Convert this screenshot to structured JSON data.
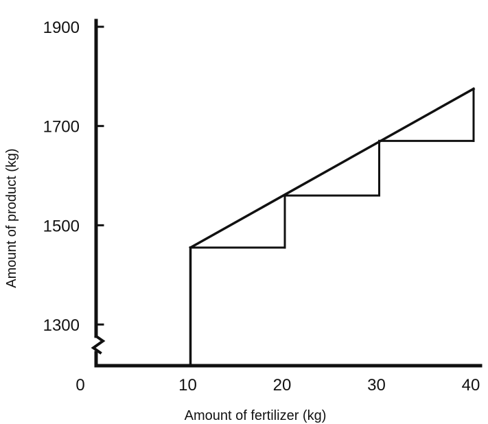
{
  "chart_data": {
    "type": "line",
    "title": "",
    "xlabel": "Amount of fertilizer (kg)",
    "ylabel": "Amount of product (kg)",
    "xlim": [
      0,
      40
    ],
    "ylim": [
      1300,
      1900
    ],
    "y_axis_break": true,
    "grid": false,
    "x_ticks": [
      {
        "value": 0,
        "label": "0"
      },
      {
        "value": 10,
        "label": "10"
      },
      {
        "value": 20,
        "label": "20"
      },
      {
        "value": 30,
        "label": "30"
      },
      {
        "value": 40,
        "label": "40"
      }
    ],
    "y_ticks": [
      {
        "value": 1300,
        "label": "1300"
      },
      {
        "value": 1500,
        "label": "1500"
      },
      {
        "value": 1700,
        "label": "1700"
      },
      {
        "value": 1900,
        "label": "1900"
      }
    ],
    "series": [
      {
        "type": "line",
        "x": [
          10,
          40
        ],
        "y": [
          1455,
          1775
        ]
      },
      {
        "type": "step",
        "steps": [
          {
            "x_start": 10,
            "x_end": 20,
            "y_start": 1455,
            "y_end": 1560
          },
          {
            "x_start": 20,
            "x_end": 30,
            "y_start": 1560,
            "y_end": 1670
          },
          {
            "x_start": 30,
            "x_end": 40,
            "y_start": 1670,
            "y_end": 1775
          }
        ]
      },
      {
        "type": "vertical",
        "x": 10,
        "y_from": 1300,
        "y_to": 1455
      }
    ]
  }
}
